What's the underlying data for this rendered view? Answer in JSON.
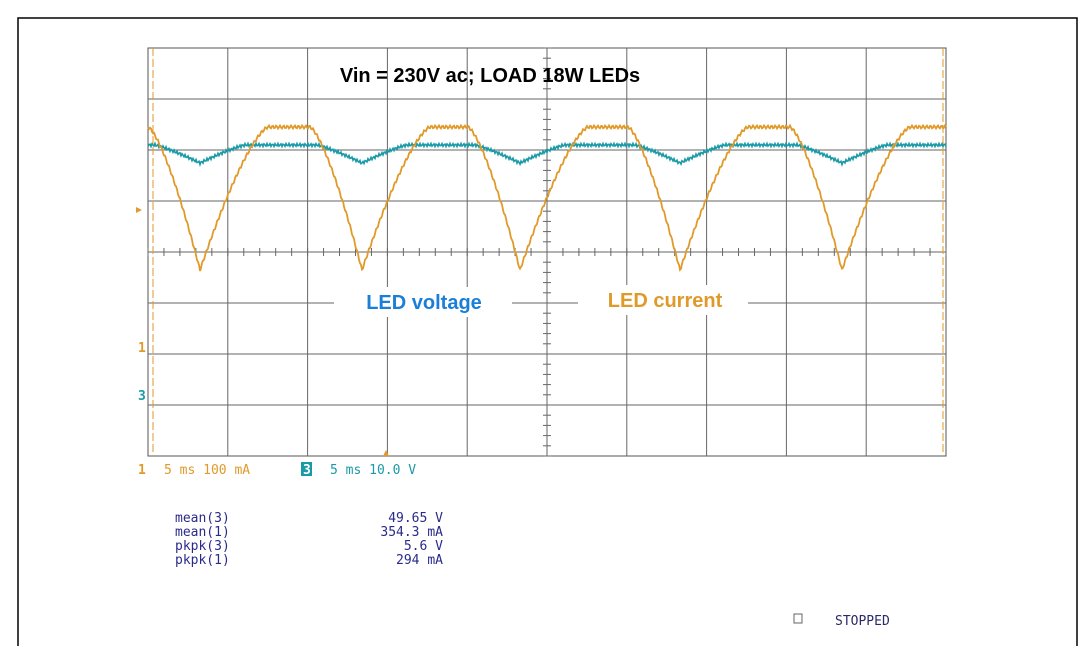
{
  "title": "Vin = 230V ac; LOAD 18W LEDs",
  "annotations": {
    "voltage": "LED voltage",
    "current": "LED current"
  },
  "channel_markers": [
    "1",
    "3"
  ],
  "settings": [
    "1",
    "5 ms 100 mA",
    "3",
    "5 ms 10.0 V"
  ],
  "measurements": [
    {
      "label": "mean(3)",
      "value": "49.65 V"
    },
    {
      "label": "mean(1)",
      "value": "354.3 mA"
    },
    {
      "label": "pkpk(3)",
      "value": "5.6 V"
    },
    {
      "label": "pkpk(1)",
      "value": "294 mA"
    }
  ],
  "status": "STOPPED"
}
